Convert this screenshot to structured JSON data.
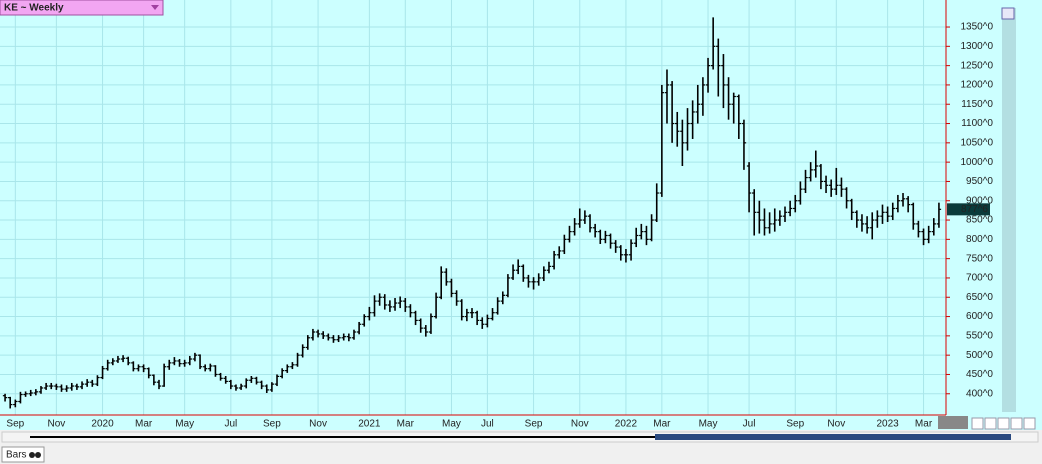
{
  "chart_data": {
    "type": "ohlc",
    "title": "KE ~ Weekly",
    "color": "#000000",
    "grid": true,
    "categories": [
      null,
      null,
      "Sep",
      null,
      null,
      null,
      null,
      null,
      null,
      null,
      "Nov",
      null,
      null,
      null,
      null,
      null,
      null,
      null,
      null,
      "2020",
      null,
      null,
      null,
      null,
      null,
      null,
      null,
      "Mar",
      null,
      null,
      null,
      null,
      null,
      null,
      null,
      "May",
      null,
      null,
      null,
      null,
      null,
      null,
      null,
      null,
      "Jul",
      null,
      null,
      null,
      null,
      null,
      null,
      null,
      "Sep",
      null,
      null,
      null,
      null,
      null,
      null,
      null,
      null,
      "Nov",
      null,
      null,
      null,
      null,
      null,
      null,
      null,
      null,
      null,
      "2021",
      null,
      null,
      null,
      null,
      null,
      null,
      "Mar",
      null,
      null,
      null,
      null,
      null,
      null,
      null,
      null,
      "May",
      null,
      null,
      null,
      null,
      null,
      null,
      "Jul",
      null,
      null,
      null,
      null,
      null,
      null,
      null,
      null,
      "Sep",
      null,
      null,
      null,
      null,
      null,
      null,
      null,
      null,
      "Nov",
      null,
      null,
      null,
      null,
      null,
      null,
      null,
      null,
      "2022",
      null,
      null,
      null,
      null,
      null,
      null,
      "Mar",
      null,
      null,
      null,
      null,
      null,
      null,
      null,
      null,
      "May",
      null,
      null,
      null,
      null,
      null,
      null,
      null,
      "Jul",
      null,
      null,
      null,
      null,
      null,
      null,
      null,
      null,
      "Sep",
      null,
      null,
      null,
      null,
      null,
      null,
      null,
      "Nov",
      null,
      null,
      null,
      null,
      null,
      null,
      null,
      null,
      null,
      "2023",
      null,
      null,
      null,
      null,
      null,
      null,
      "Mar",
      null,
      null,
      null
    ],
    "open": [
      395,
      390,
      372,
      380,
      398,
      400,
      402,
      405,
      415,
      420,
      420,
      418,
      412,
      415,
      420,
      418,
      425,
      430,
      425,
      442,
      465,
      480,
      485,
      490,
      492,
      480,
      465,
      470,
      465,
      448,
      430,
      420,
      470,
      480,
      485,
      478,
      480,
      490,
      500,
      470,
      465,
      472,
      450,
      440,
      432,
      420,
      415,
      420,
      435,
      440,
      430,
      420,
      410,
      425,
      445,
      460,
      470,
      475,
      500,
      520,
      545,
      560,
      555,
      550,
      545,
      540,
      545,
      548,
      545,
      560,
      580,
      600,
      610,
      640,
      650,
      630,
      625,
      635,
      640,
      625,
      610,
      590,
      570,
      560,
      600,
      650,
      715,
      690,
      660,
      640,
      600,
      610,
      610,
      590,
      580,
      595,
      610,
      640,
      655,
      700,
      720,
      730,
      700,
      690,
      690,
      700,
      720,
      730,
      760,
      770,
      800,
      820,
      840,
      850,
      860,
      830,
      820,
      800,
      810,
      790,
      780,
      760,
      760,
      790,
      810,
      820,
      800,
      850,
      920,
      1180,
      1200,
      1100,
      1080,
      1050,
      1100,
      1130,
      1150,
      1200,
      1250,
      1300,
      1250,
      1200,
      1150,
      1170,
      1100,
      990,
      920,
      870,
      850,
      830,
      840,
      850,
      860,
      870,
      880,
      900,
      930,
      960,
      980,
      990,
      950,
      940,
      930,
      940,
      930,
      900,
      870,
      850,
      840,
      830,
      850,
      860,
      870,
      860,
      880,
      900,
      905,
      890,
      840,
      820,
      800,
      820,
      840
    ],
    "high": [
      400,
      392,
      385,
      405,
      406,
      410,
      412,
      420,
      428,
      428,
      426,
      424,
      422,
      428,
      426,
      432,
      438,
      436,
      448,
      472,
      488,
      492,
      498,
      500,
      496,
      484,
      476,
      476,
      468,
      450,
      436,
      478,
      488,
      495,
      490,
      488,
      498,
      506,
      502,
      476,
      478,
      474,
      454,
      446,
      436,
      424,
      426,
      440,
      446,
      444,
      434,
      424,
      430,
      450,
      466,
      476,
      482,
      506,
      528,
      552,
      568,
      566,
      562,
      556,
      552,
      552,
      556,
      556,
      566,
      586,
      606,
      625,
      655,
      660,
      658,
      642,
      648,
      652,
      648,
      632,
      615,
      595,
      578,
      608,
      662,
      730,
      725,
      698,
      668,
      645,
      620,
      622,
      615,
      598,
      605,
      622,
      650,
      665,
      710,
      735,
      748,
      735,
      708,
      702,
      712,
      730,
      742,
      770,
      782,
      812,
      835,
      855,
      880,
      875,
      865,
      840,
      825,
      822,
      815,
      798,
      785,
      775,
      800,
      830,
      840,
      835,
      865,
      945,
      1200,
      1240,
      1210,
      1130,
      1110,
      1140,
      1160,
      1200,
      1220,
      1270,
      1375,
      1320,
      1280,
      1220,
      1180,
      1175,
      1110,
      1000,
      930,
      900,
      880,
      870,
      880,
      875,
      885,
      900,
      915,
      950,
      980,
      1000,
      1030,
      995,
      965,
      955,
      985,
      960,
      935,
      905,
      875,
      865,
      860,
      870,
      875,
      890,
      885,
      895,
      915,
      920,
      912,
      895,
      848,
      828,
      835,
      855,
      895
    ],
    "low": [
      380,
      362,
      365,
      375,
      392,
      394,
      396,
      400,
      410,
      412,
      410,
      405,
      405,
      408,
      410,
      412,
      418,
      418,
      420,
      438,
      460,
      474,
      480,
      482,
      474,
      458,
      458,
      456,
      440,
      422,
      412,
      418,
      462,
      474,
      470,
      470,
      474,
      484,
      464,
      458,
      458,
      444,
      434,
      426,
      412,
      408,
      410,
      414,
      428,
      424,
      412,
      402,
      405,
      420,
      440,
      454,
      464,
      470,
      494,
      514,
      538,
      546,
      542,
      538,
      532,
      534,
      538,
      536,
      540,
      554,
      574,
      590,
      600,
      628,
      618,
      612,
      615,
      622,
      612,
      598,
      578,
      558,
      548,
      555,
      595,
      645,
      680,
      650,
      628,
      590,
      588,
      596,
      578,
      568,
      572,
      590,
      605,
      632,
      650,
      695,
      710,
      690,
      675,
      670,
      680,
      692,
      712,
      722,
      750,
      762,
      792,
      810,
      830,
      840,
      818,
      805,
      788,
      790,
      776,
      765,
      745,
      740,
      745,
      780,
      800,
      785,
      795,
      845,
      910,
      1100,
      1050,
      1040,
      990,
      1030,
      1060,
      1100,
      1120,
      1180,
      1240,
      1170,
      1140,
      1110,
      1100,
      1060,
      980,
      870,
      810,
      815,
      810,
      815,
      820,
      835,
      845,
      860,
      870,
      890,
      920,
      950,
      960,
      930,
      920,
      910,
      915,
      910,
      880,
      850,
      830,
      820,
      815,
      800,
      830,
      840,
      845,
      850,
      870,
      885,
      870,
      825,
      805,
      785,
      790,
      810,
      830
    ],
    "close": [
      390,
      372,
      380,
      398,
      400,
      402,
      405,
      415,
      420,
      420,
      418,
      412,
      415,
      420,
      418,
      425,
      430,
      425,
      442,
      465,
      480,
      485,
      490,
      492,
      480,
      465,
      470,
      465,
      448,
      430,
      420,
      470,
      480,
      485,
      478,
      480,
      490,
      500,
      470,
      465,
      472,
      450,
      440,
      432,
      420,
      415,
      420,
      435,
      440,
      430,
      420,
      410,
      425,
      445,
      460,
      470,
      475,
      500,
      520,
      545,
      560,
      555,
      550,
      545,
      540,
      545,
      548,
      545,
      560,
      580,
      600,
      610,
      640,
      650,
      630,
      625,
      635,
      640,
      625,
      610,
      590,
      570,
      560,
      600,
      650,
      715,
      690,
      660,
      640,
      600,
      610,
      610,
      590,
      580,
      595,
      610,
      640,
      655,
      700,
      720,
      730,
      700,
      690,
      690,
      700,
      720,
      730,
      760,
      770,
      800,
      820,
      840,
      850,
      860,
      830,
      820,
      800,
      810,
      790,
      780,
      760,
      760,
      790,
      810,
      820,
      800,
      850,
      920,
      1180,
      1200,
      1100,
      1080,
      1050,
      1100,
      1130,
      1150,
      1200,
      1250,
      1300,
      1250,
      1200,
      1150,
      1170,
      1100,
      1050,
      920,
      870,
      850,
      830,
      840,
      850,
      860,
      870,
      880,
      900,
      930,
      960,
      980,
      990,
      950,
      940,
      930,
      940,
      930,
      900,
      870,
      850,
      840,
      830,
      850,
      860,
      870,
      860,
      880,
      900,
      905,
      890,
      840,
      820,
      800,
      820,
      840,
      877.75
    ],
    "last_label": {
      "value": 877.75,
      "label": "877^6"
    },
    "ylim": [
      345,
      1420
    ],
    "yticks": [
      {
        "value": 400,
        "label": "400^0"
      },
      {
        "value": 450,
        "label": "450^0"
      },
      {
        "value": 500,
        "label": "500^0"
      },
      {
        "value": 550,
        "label": "550^0"
      },
      {
        "value": 600,
        "label": "600^0"
      },
      {
        "value": 650,
        "label": "650^0"
      },
      {
        "value": 700,
        "label": "700^0"
      },
      {
        "value": 750,
        "label": "750^0"
      },
      {
        "value": 800,
        "label": "800^0"
      },
      {
        "value": 850,
        "label": "850^0"
      },
      {
        "value": 900,
        "label": "900^0"
      },
      {
        "value": 950,
        "label": "950^0"
      },
      {
        "value": 1000,
        "label": "1000^0"
      },
      {
        "value": 1050,
        "label": "1050^0"
      },
      {
        "value": 1100,
        "label": "1100^0"
      },
      {
        "value": 1150,
        "label": "1150^0"
      },
      {
        "value": 1200,
        "label": "1200^0"
      },
      {
        "value": 1250,
        "label": "1250^0"
      },
      {
        "value": 1300,
        "label": "1300^0"
      },
      {
        "value": 1350,
        "label": "1350^0"
      }
    ]
  },
  "ui": {
    "tab_label": "Bars"
  }
}
